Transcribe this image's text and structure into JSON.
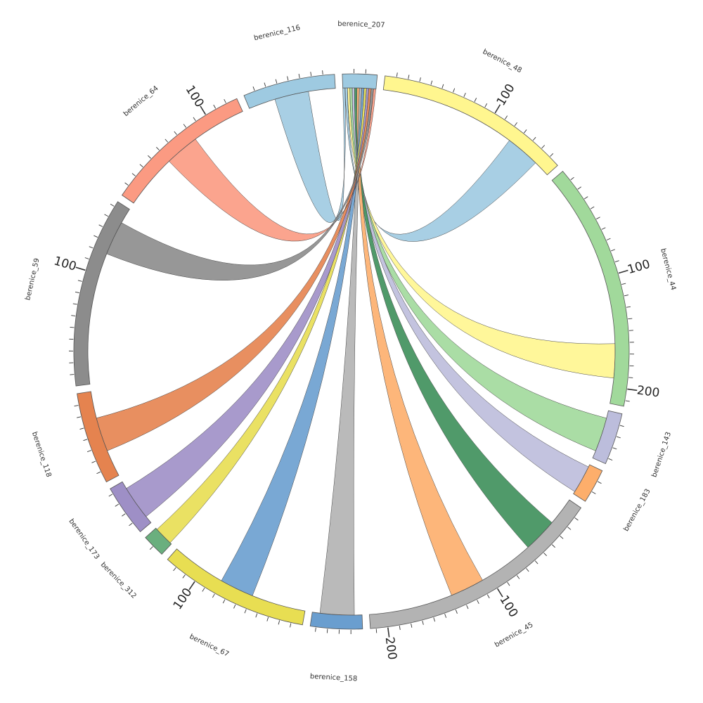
{
  "chart_data": {
    "type": "chord",
    "title": "",
    "hub": "berenice_207",
    "segments": [
      {
        "name": "berenice_207",
        "length": 30,
        "color": "#9ecae1",
        "tick_labels": []
      },
      {
        "name": "berenice_48",
        "length": 170,
        "color": "#fff68f",
        "tick_labels": [
          "100"
        ]
      },
      {
        "name": "berenice_44",
        "length": 215,
        "color": "#a1d99b",
        "tick_labels": [
          "100",
          "200"
        ]
      },
      {
        "name": "berenice_143",
        "length": 45,
        "color": "#bcbddc",
        "tick_labels": []
      },
      {
        "name": "berenice_183",
        "length": 30,
        "color": "#fdae6b",
        "tick_labels": []
      },
      {
        "name": "berenice_45",
        "length": 215,
        "color": "#b3b3b3",
        "tick_labels": [
          "100",
          "200"
        ]
      },
      {
        "name": "berenice_158",
        "length": 45,
        "color": "#6a9ecf",
        "tick_labels": []
      },
      {
        "name": "berenice_67",
        "length": 130,
        "color": "#e8de52",
        "tick_labels": [
          "100"
        ]
      },
      {
        "name": "berenice_312",
        "length": 20,
        "color": "#6aaf7e",
        "tick_labels": []
      },
      {
        "name": "berenice_173",
        "length": 45,
        "color": "#9e8fc6",
        "tick_labels": []
      },
      {
        "name": "berenice_118",
        "length": 80,
        "color": "#e5834f",
        "tick_labels": []
      },
      {
        "name": "berenice_59",
        "length": 165,
        "color": "#8c8c8c",
        "tick_labels": [
          "100"
        ]
      },
      {
        "name": "berenice_64",
        "length": 130,
        "color": "#fb9a82",
        "tick_labels": [
          "100"
        ]
      },
      {
        "name": "berenice_116",
        "length": 80,
        "color": "#9ecae1",
        "tick_labels": []
      }
    ],
    "links": [
      {
        "source": "berenice_207",
        "target": "berenice_116",
        "color": "#9ecae1"
      },
      {
        "source": "berenice_207",
        "target": "berenice_48",
        "color": "#9ecae1"
      },
      {
        "source": "berenice_207",
        "target": "berenice_44",
        "color": "#fff68f"
      },
      {
        "source": "berenice_207",
        "target": "berenice_143",
        "color": "#a1d99b"
      },
      {
        "source": "berenice_207",
        "target": "berenice_183",
        "color": "#bcbddc"
      },
      {
        "source": "berenice_207",
        "target": "berenice_45",
        "color": "#3d8f5a"
      },
      {
        "source": "berenice_207",
        "target": "berenice_45",
        "color": "#fdae6b"
      },
      {
        "source": "berenice_207",
        "target": "berenice_158",
        "color": "#b3b3b3"
      },
      {
        "source": "berenice_207",
        "target": "berenice_67",
        "color": "#6a9ecf"
      },
      {
        "source": "berenice_207",
        "target": "berenice_312",
        "color": "#e8de52"
      },
      {
        "source": "berenice_207",
        "target": "berenice_173",
        "color": "#9e8fc6"
      },
      {
        "source": "berenice_207",
        "target": "berenice_118",
        "color": "#e5834f"
      },
      {
        "source": "berenice_207",
        "target": "berenice_59",
        "color": "#8c8c8c"
      },
      {
        "source": "berenice_207",
        "target": "berenice_64",
        "color": "#fb9a82"
      }
    ]
  }
}
